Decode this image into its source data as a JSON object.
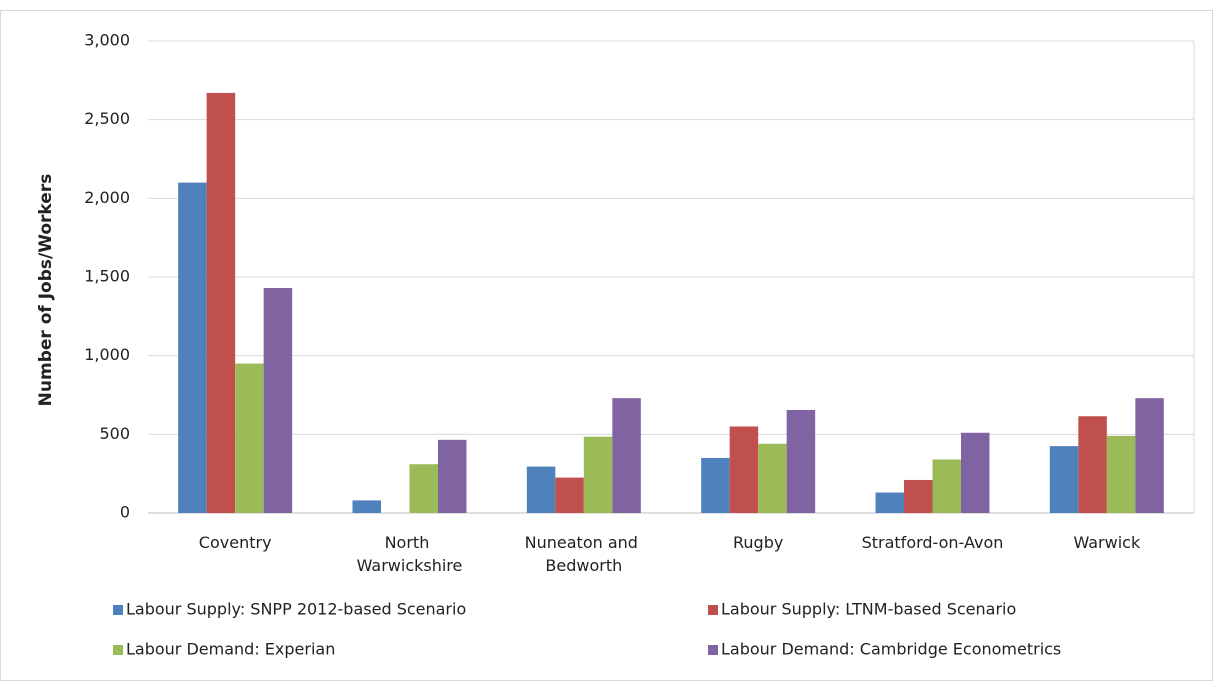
{
  "chart_data": {
    "type": "bar",
    "y_label": "Number of Jobs/Workers",
    "categories": [
      "Coventry",
      "North Warwickshire",
      "Nuneaton and Bedworth",
      "Rugby",
      "Stratford-on-Avon",
      "Warwick"
    ],
    "series": [
      {
        "name": "Labour Supply: SNPP 2012-based Scenario",
        "color": "#4f81bd",
        "values": [
          2100,
          80,
          295,
          350,
          130,
          425
        ]
      },
      {
        "name": "Labour Supply: LTNM-based Scenario",
        "color": "#c0504d",
        "values": [
          2670,
          0,
          225,
          550,
          210,
          615
        ]
      },
      {
        "name": "Labour Demand: Experian",
        "color": "#9bbb59",
        "values": [
          950,
          310,
          485,
          440,
          340,
          490
        ]
      },
      {
        "name": "Labour Demand: Cambridge Econometrics",
        "color": "#8064a2",
        "values": [
          1430,
          465,
          730,
          655,
          510,
          730
        ]
      }
    ],
    "ylim": [
      0,
      3000
    ],
    "yticks": [
      0,
      {
        "value": 500,
        "label": "500"
      },
      {
        "value": 1000,
        "label": "1,000"
      },
      {
        "value": 1500,
        "label": "1,500"
      },
      {
        "value": 2000,
        "label": "2,000"
      },
      {
        "value": 2500,
        "label": "2,500"
      },
      {
        "value": 3000,
        "label": "3,000"
      }
    ],
    "grid": true
  }
}
